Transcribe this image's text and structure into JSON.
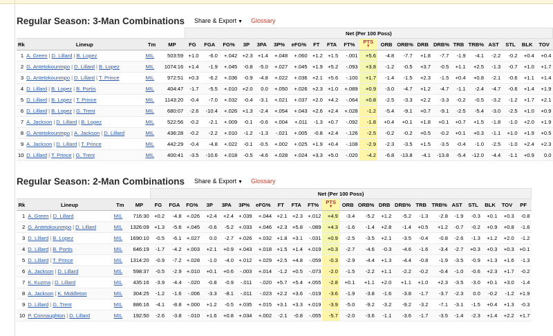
{
  "sections": [
    {
      "title": "Regular Season: 3-Man Combinations",
      "share_label": "Share & Export",
      "glossary_label": "Glossary",
      "net_label": "Net (Per 100 Poss)",
      "columns": [
        "Rk",
        "Lineup",
        "Tm",
        "MP",
        "FG",
        "FGA",
        "FG%",
        "3P",
        "3PA",
        "3P%",
        "eFG%",
        "FT",
        "FTA",
        "FT%",
        "PTS",
        "ORB",
        "ORB%",
        "DRB",
        "DRB%",
        "TRB",
        "TRB%",
        "AST",
        "STL",
        "BLK",
        "TOV"
      ],
      "rows": [
        {
          "rk": "1",
          "players": [
            "A. Green",
            "D. Lillard",
            "B. Lopez"
          ],
          "tm": "MIL",
          "mp": "503:59",
          "stats": [
            "+1.0",
            "-6.0",
            "+.042",
            "+2.3",
            "+1.4",
            "+.048",
            "+.060",
            "+1.2",
            "+1.5",
            "-.001",
            "+5.6",
            "-4.8",
            "-7.7",
            "+1.8",
            "-7.7",
            "-1.9",
            "-4.1",
            "-2.2",
            "-0.2",
            "+0.4",
            "+0.4"
          ]
        },
        {
          "rk": "2",
          "players": [
            "G. Antetokounmpo",
            "D. Lillard",
            "B. Lopez"
          ],
          "tm": "MIL",
          "mp": "1074:16",
          "stats": [
            "+1.4",
            "-1.9",
            "+.045",
            "-0.8",
            "-5.0",
            "+.027",
            "+.045",
            "+1.9",
            "+5.2",
            "-.093",
            "+3.8",
            "-1.2",
            "-0.5",
            "+3.7",
            "-0.5",
            "+1.1",
            "+2.5",
            "-1.3",
            "-0.7",
            "+1.0",
            "+1.7"
          ]
        },
        {
          "rk": "3",
          "players": [
            "G. Antetokounmpo",
            "D. Lillard",
            "T. Prince"
          ],
          "tm": "MIL",
          "mp": "972:51",
          "stats": [
            "+0.3",
            "-6.2",
            "+.036",
            "-0.9",
            "-4.8",
            "+.022",
            "+.036",
            "+2.1",
            "+5.6",
            "-.100",
            "+1.7",
            "-1.4",
            "-1.5",
            "+2.3",
            "-1.5",
            "+0.4",
            "+0.8",
            "-2.1",
            "-0.6",
            "+1.1",
            "+1.4"
          ]
        },
        {
          "rk": "4",
          "players": [
            "D. Lillard",
            "B. Lopez",
            "B. Portis"
          ],
          "tm": "MIL",
          "mp": "404:47",
          "stats": [
            "-1.7",
            "-5.5",
            "+.010",
            "+2.0",
            "0.0",
            "+.050",
            "+.026",
            "+2.3",
            "+1.0",
            "+.089",
            "+0.9",
            "-3.0",
            "-4.7",
            "+1.2",
            "-4.7",
            "-1.1",
            "-2.4",
            "-4.7",
            "-0.6",
            "+1.4",
            "+1.9"
          ]
        },
        {
          "rk": "5",
          "players": [
            "D. Lillard",
            "B. Lopez",
            "T. Prince"
          ],
          "tm": "MIL",
          "mp": "1143:20",
          "stats": [
            "-0.4",
            "-7.0",
            "+.032",
            "-0.4",
            "-3.1",
            "+.021",
            "+.037",
            "+2.0",
            "+4.2",
            "-.064",
            "+0.8",
            "-2.5",
            "-3.3",
            "+2.2",
            "-3.3",
            "-0.2",
            "-0.5",
            "-3.2",
            "-1.2",
            "+1.7",
            "+2.1"
          ]
        },
        {
          "rk": "6",
          "players": [
            "D. Lillard",
            "B. Lopez",
            "G. Trent"
          ],
          "tm": "MIL",
          "mp": "680:07",
          "stats": [
            "-2.6",
            "-10.4",
            "+.026",
            "+1.3",
            "-2.4",
            "+.054",
            "+.043",
            "+2.6",
            "+2.4",
            "+.028",
            "-1.2",
            "-5.4",
            "-9.1",
            "+0.7",
            "-9.1",
            "-2.5",
            "-5.4",
            "-3.0",
            "-2.5",
            "+1.0",
            "+0.9"
          ]
        },
        {
          "rk": "7",
          "players": [
            "A. Jackson",
            "D. Lillard",
            "B. Lopez"
          ],
          "tm": "MIL",
          "mp": "522:56",
          "stats": [
            "-0.2",
            "-2.1",
            "+.009",
            "-0.1",
            "-0.6",
            "+.004",
            "+.011",
            "-1.3",
            "+0.7",
            "-.092",
            "-1.8",
            "+0.4",
            "+0.1",
            "+1.8",
            "+0.1",
            "+0.7",
            "+1.5",
            "-1.8",
            "-1.0",
            "+2.0",
            "+1.9"
          ]
        },
        {
          "rk": "8",
          "players": [
            "G. Antetokounmpo",
            "A. Jackson",
            "D. Lillard"
          ],
          "tm": "MIL",
          "mp": "436:28",
          "stats": [
            "-0.2",
            "-2.2",
            "+.010",
            "-1.2",
            "-1.3",
            "-.021",
            "+.005",
            "-0.8",
            "+2.4",
            "-.126",
            "-2.5",
            "-0.2",
            "-0.2",
            "+0.5",
            "-0.2",
            "+0.1",
            "+0.3",
            "-1.1",
            "+1.0",
            "+1.9",
            "+0.5"
          ]
        },
        {
          "rk": "9",
          "players": [
            "A. Jackson",
            "D. Lillard",
            "T. Prince"
          ],
          "tm": "MIL",
          "mp": "442:29",
          "stats": [
            "-0.4",
            "-4.8",
            "+.022",
            "-0.1",
            "-0.5",
            "+.002",
            "+.025",
            "+1.9",
            "+0.4",
            "-.108",
            "-2.9",
            "-2.3",
            "-3.5",
            "+1.5",
            "-3.5",
            "-0.4",
            "-1.0",
            "-2.5",
            "-1.0",
            "+2.4",
            "+2.3"
          ]
        },
        {
          "rk": "10",
          "players": [
            "D. Lillard",
            "T. Prince",
            "G. Trent"
          ],
          "tm": "MIL",
          "mp": "400:41",
          "stats": [
            "-3.5",
            "-10.6",
            "+.018",
            "-0.5",
            "-4.6",
            "+.028",
            "+.024",
            "+3.3",
            "+5.0",
            "-.020",
            "-4.2",
            "-6.8",
            "-13.8",
            "-4.1",
            "-13.8",
            "-5.4",
            "-12.0",
            "-4.4",
            "-1.1",
            "+0.9",
            "0.0"
          ]
        }
      ]
    },
    {
      "title": "Regular Season: 2-Man Combinations",
      "share_label": "Share & Export",
      "glossary_label": "Glossary",
      "net_label": "Net (Per 100 Poss)",
      "columns": [
        "Rk",
        "Lineup",
        "Tm",
        "MP",
        "FG",
        "FGA",
        "FG%",
        "3P",
        "3PA",
        "3P%",
        "eFG%",
        "FT",
        "FTA",
        "FT%",
        "PTS",
        "ORB",
        "ORB%",
        "DRB",
        "DRB%",
        "TRB",
        "TRB%",
        "AST",
        "STL",
        "BLK",
        "TOV",
        "PF"
      ],
      "rows": [
        {
          "rk": "1",
          "players": [
            "A. Green",
            "D. Lillard"
          ],
          "tm": "MIL",
          "mp": "716:30",
          "stats": [
            "+0.2",
            "-4.8",
            "+.026",
            "+2.4",
            "+2.4",
            "+.039",
            "+.044",
            "+2.1",
            "+2.3",
            "+.012",
            "+4.9",
            "-3.4",
            "-5.2",
            "+1.2",
            "-5.2",
            "-1.3",
            "-2.8",
            "-1.9",
            "-0.3",
            "+0.1",
            "+0.3",
            "-0.8"
          ]
        },
        {
          "rk": "2",
          "players": [
            "G. Antetokounmpo",
            "D. Lillard"
          ],
          "tm": "MIL",
          "mp": "1326:09",
          "stats": [
            "+1.3",
            "-5.6",
            "+.045",
            "-0.6",
            "-5.2",
            "+.033",
            "+.046",
            "+2.3",
            "+5.8",
            "-.089",
            "+4.3",
            "-1.6",
            "-1.4",
            "+2.8",
            "-1.4",
            "+0.5",
            "+1.2",
            "-0.7",
            "-0.2",
            "+0.9",
            "+0.8",
            "-1.6"
          ]
        },
        {
          "rk": "3",
          "players": [
            "D. Lillard",
            "B. Lopez"
          ],
          "tm": "MIL",
          "mp": "1690:10",
          "stats": [
            "-0.5",
            "-6.1",
            "+.027",
            "0.0",
            "-2.7",
            "+.026",
            "+.032",
            "+1.8",
            "+3.1",
            "-.031",
            "+0.9",
            "-2.5",
            "-3.5",
            "+2.1",
            "-3.5",
            "-0.4",
            "-0.8",
            "-2.6",
            "-1.3",
            "+1.2",
            "+2.0",
            "-1.2"
          ]
        },
        {
          "rk": "4",
          "players": [
            "D. Lillard",
            "B. Portis"
          ],
          "tm": "MIL",
          "mp": "646:19",
          "stats": [
            "-1.7",
            "-4.2",
            "+.003",
            "+2.1",
            "+0.9",
            "+.043",
            "+.018",
            "+1.5",
            "+1.4",
            "+.019",
            "+0.3",
            "-2.7",
            "-4.6",
            "-0.3",
            "-4.6",
            "-1.6",
            "-3.4",
            "-2.7",
            "+0.3",
            "+0.3",
            "+0.3",
            "+0.1"
          ]
        },
        {
          "rk": "5",
          "players": [
            "D. Lillard",
            "T. Prince"
          ],
          "tm": "MIL",
          "mp": "1314:20",
          "stats": [
            "-0.9",
            "-7.2",
            "+.028",
            "-1.0",
            "-4.0",
            "+.012",
            "+.029",
            "+2.5",
            "+4.8",
            "-.059",
            "-0.3",
            "-2.9",
            "-4.4",
            "+1.3",
            "-4.4",
            "-0.8",
            "-1.9",
            "-3.5",
            "-0.9",
            "+1.3",
            "+1.6",
            "-1.3"
          ]
        },
        {
          "rk": "6",
          "players": [
            "A. Jackson",
            "D. Lillard"
          ],
          "tm": "MIL",
          "mp": "598:37",
          "stats": [
            "-0.5",
            "-2.9",
            "+.010",
            "+0.1",
            "+0.6",
            "-.003",
            "+.014",
            "-1.2",
            "+0.5",
            "-.073",
            "-2.0",
            "-1.5",
            "-2.2",
            "+1.1",
            "-2.2",
            "-0.2",
            "-0.4",
            "-1.0",
            "-0.6",
            "+2.3",
            "+1.7",
            "-0.2"
          ]
        },
        {
          "rk": "7",
          "players": [
            "K. Kuzma",
            "D. Lillard"
          ],
          "tm": "MIL",
          "mp": "435:16",
          "stats": [
            "-3.9",
            "-4.4",
            "-.020",
            "-0.8",
            "-0.9",
            "-.011",
            "-.020",
            "+5.7",
            "+5.4",
            "+.055",
            "-2.8",
            "+0.1",
            "+1.1",
            "+2.0",
            "+1.1",
            "+1.0",
            "+2.3",
            "-3.5",
            "-3.0",
            "+0.1",
            "+3.0",
            "-1.4"
          ]
        },
        {
          "rk": "8",
          "players": [
            "A. Jackson",
            "K. Middleton"
          ],
          "tm": "MIL",
          "mp": "304:25",
          "stats": [
            "-1.2",
            "-1.6",
            "-.006",
            "-3.3",
            "-8.1",
            "-.011",
            "-.023",
            "+2.2",
            "+3.6",
            "-.019",
            "-3.6",
            "-1.9",
            "-3.8",
            "-1.6",
            "-3.8",
            "-1.7",
            "-3.7",
            "-2.3",
            "0.0",
            "-0.2",
            "-1.2",
            "+1.9"
          ]
        },
        {
          "rk": "9",
          "players": [
            "D. Lillard",
            "G. Trent"
          ],
          "tm": "MIL",
          "mp": "886:16",
          "stats": [
            "-4.1",
            "-8.8",
            "+.000",
            "+1.2",
            "-0.5",
            "+.035",
            "+.015",
            "+3.1",
            "+3.3",
            "+.019",
            "-3.9",
            "-5.0",
            "-9.2",
            "-3.2",
            "-9.2",
            "-3.2",
            "-7.1",
            "-3.1",
            "-1.5",
            "+0.4",
            "+1.3",
            "-0.3"
          ]
        },
        {
          "rk": "10",
          "players": [
            "P. Connaughton",
            "D. Lillard"
          ],
          "tm": "MIL",
          "mp": "192:50",
          "stats": [
            "-2.6",
            "-3.8",
            "-.010",
            "+1.6",
            "+0.8",
            "+.034",
            "+.002",
            "-2.1",
            "-0.8",
            "-.055",
            "-5.7",
            "-2.0",
            "-3.6",
            "-1.1",
            "-3.6",
            "-1.7",
            "-3.5",
            "-1.4",
            "-2.3",
            "+1.4",
            "+2.2",
            "+1.7"
          ]
        }
      ]
    }
  ]
}
